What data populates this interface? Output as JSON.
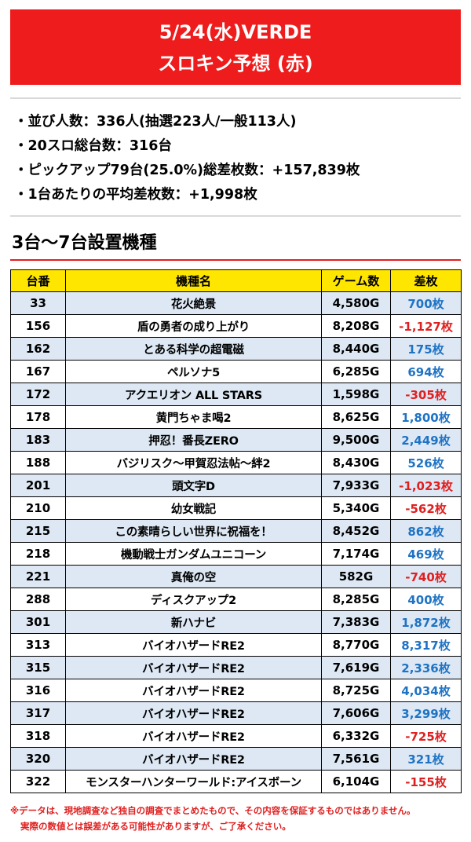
{
  "header": {
    "line1": "5/24(水)VERDE",
    "line2": "スロキン予想 (赤)"
  },
  "stats": [
    "・並び人数：336人(抽選223人/一般113人)",
    "・20スロ総台数：316台",
    "・ピックアップ79台(25.0%)総差枚数：+157,839枚",
    "・1台あたりの平均差枚数：+1,998枚"
  ],
  "section": {
    "title": "3台～7台設置機種"
  },
  "table": {
    "headers": [
      "台番",
      "機種名",
      "ゲーム数",
      "差枚"
    ],
    "rows": [
      {
        "num": "33",
        "name": "花火絶景",
        "games": "4,580G",
        "diff": "700枚",
        "sign": "pos"
      },
      {
        "num": "156",
        "name": "盾の勇者の成り上がり",
        "games": "8,208G",
        "diff": "-1,127枚",
        "sign": "neg"
      },
      {
        "num": "162",
        "name": "とある科学の超電磁",
        "games": "8,440G",
        "diff": "175枚",
        "sign": "pos"
      },
      {
        "num": "167",
        "name": "ペルソナ5",
        "games": "6,285G",
        "diff": "694枚",
        "sign": "pos"
      },
      {
        "num": "172",
        "name": "アクエリオン ALL STARS",
        "games": "1,598G",
        "diff": "-305枚",
        "sign": "neg"
      },
      {
        "num": "178",
        "name": "黄門ちゃま喝2",
        "games": "8,625G",
        "diff": "1,800枚",
        "sign": "pos"
      },
      {
        "num": "183",
        "name": "押忍！番長ZERO",
        "games": "9,500G",
        "diff": "2,449枚",
        "sign": "pos"
      },
      {
        "num": "188",
        "name": "バジリスク～甲賀忍法帖～絆2",
        "games": "8,430G",
        "diff": "526枚",
        "sign": "pos"
      },
      {
        "num": "201",
        "name": "頭文字D",
        "games": "7,933G",
        "diff": "-1,023枚",
        "sign": "neg"
      },
      {
        "num": "210",
        "name": "幼女戦記",
        "games": "5,340G",
        "diff": "-562枚",
        "sign": "neg"
      },
      {
        "num": "215",
        "name": "この素晴らしい世界に祝福を！",
        "games": "8,452G",
        "diff": "862枚",
        "sign": "pos"
      },
      {
        "num": "218",
        "name": "機動戦士ガンダムユニコーン",
        "games": "7,174G",
        "diff": "469枚",
        "sign": "pos"
      },
      {
        "num": "221",
        "name": "真俺の空",
        "games": "582G",
        "diff": "-740枚",
        "sign": "neg"
      },
      {
        "num": "288",
        "name": "ディスクアップ2",
        "games": "8,285G",
        "diff": "400枚",
        "sign": "pos"
      },
      {
        "num": "301",
        "name": "新ハナビ",
        "games": "7,383G",
        "diff": "1,872枚",
        "sign": "pos"
      },
      {
        "num": "313",
        "name": "バイオハザードRE2",
        "games": "8,770G",
        "diff": "8,317枚",
        "sign": "pos"
      },
      {
        "num": "315",
        "name": "バイオハザードRE2",
        "games": "7,619G",
        "diff": "2,336枚",
        "sign": "pos"
      },
      {
        "num": "316",
        "name": "バイオハザードRE2",
        "games": "8,725G",
        "diff": "4,034枚",
        "sign": "pos"
      },
      {
        "num": "317",
        "name": "バイオハザードRE2",
        "games": "7,606G",
        "diff": "3,299枚",
        "sign": "pos"
      },
      {
        "num": "318",
        "name": "バイオハザードRE2",
        "games": "6,332G",
        "diff": "-725枚",
        "sign": "neg"
      },
      {
        "num": "320",
        "name": "バイオハザードRE2",
        "games": "7,561G",
        "diff": "321枚",
        "sign": "pos"
      },
      {
        "num": "322",
        "name": "モンスターハンターワールド:アイスボーン",
        "games": "6,104G",
        "diff": "-155枚",
        "sign": "neg"
      }
    ]
  },
  "note": {
    "line1": "※データは、現地調査など独自の調査でまとめたもので、その内容を保証するものではありません。",
    "line2": "実際の数値とは誤差がある可能性がありますが、ご了承ください。"
  },
  "colors": {
    "header_bg": "#ee1c1c",
    "table_header_bg": "#ffe600",
    "row_alt_bg": "#dde8f4",
    "positive": "#1f73c4",
    "negative": "#e02020"
  }
}
